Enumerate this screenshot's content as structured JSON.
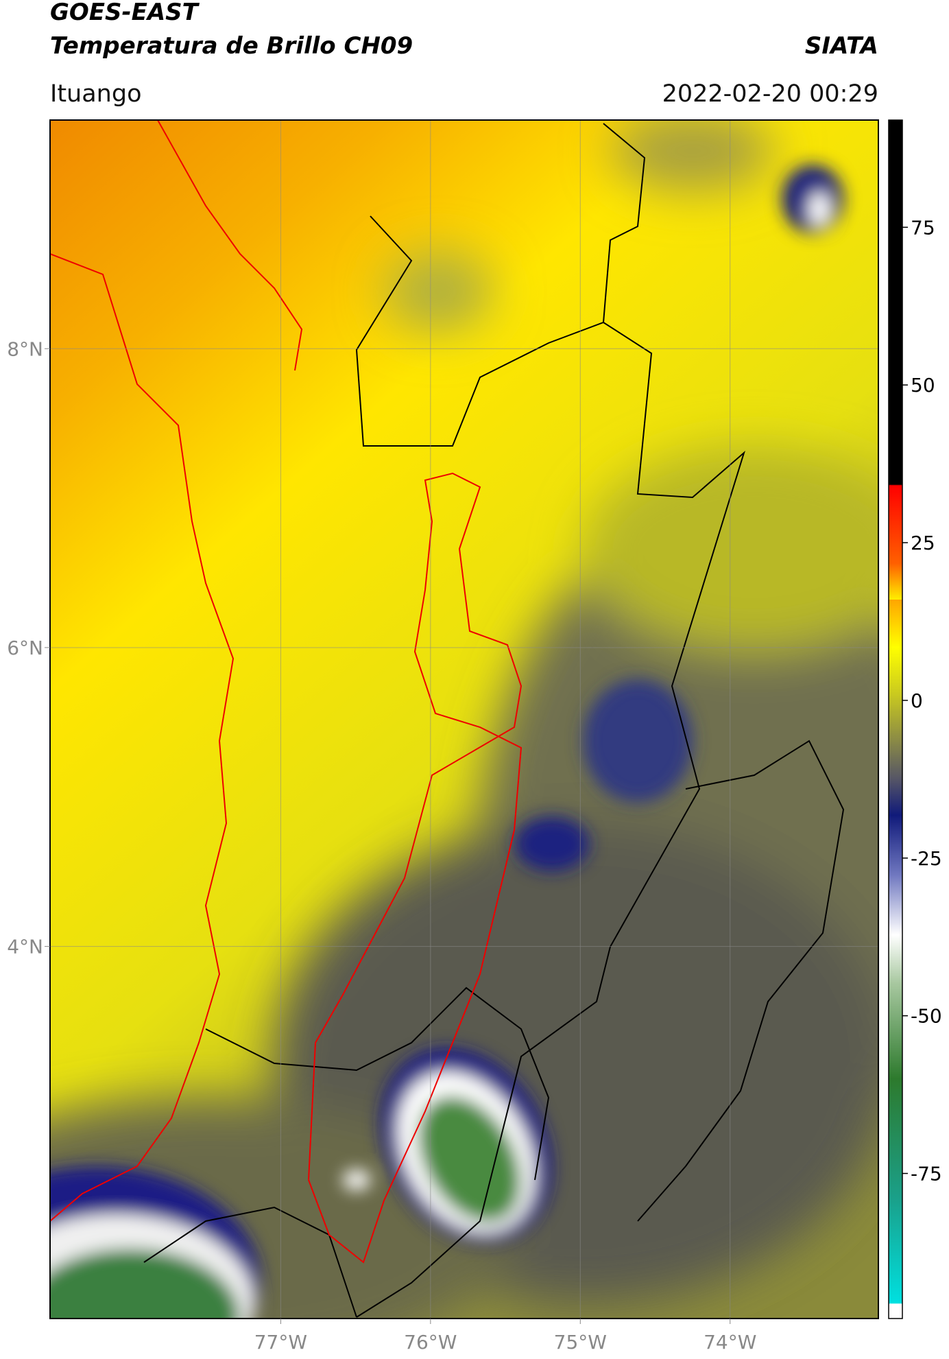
{
  "header": {
    "title": "GOES-EAST",
    "subtitle": "Temperatura de Brillo CH09",
    "brand": "SIATA",
    "region": "Ituango",
    "timestamp": "2022-02-20 00:29"
  },
  "map": {
    "lon_lim": [
      -78.54,
      -73.01
    ],
    "lat_lim": [
      1.51,
      9.53
    ],
    "lon_ticks": [
      {
        "value": -77,
        "label": "77°W"
      },
      {
        "value": -76,
        "label": "76°W"
      },
      {
        "value": -75,
        "label": "75°W"
      },
      {
        "value": -74,
        "label": "74°W"
      }
    ],
    "lat_ticks": [
      {
        "value": 4,
        "label": "4°N"
      },
      {
        "value": 6,
        "label": "6°N"
      },
      {
        "value": 8,
        "label": "8°N"
      }
    ]
  },
  "colorbar": {
    "lim": [
      -98,
      92
    ],
    "ticks": [
      -75,
      -50,
      -25,
      0,
      25,
      50,
      75
    ]
  }
}
